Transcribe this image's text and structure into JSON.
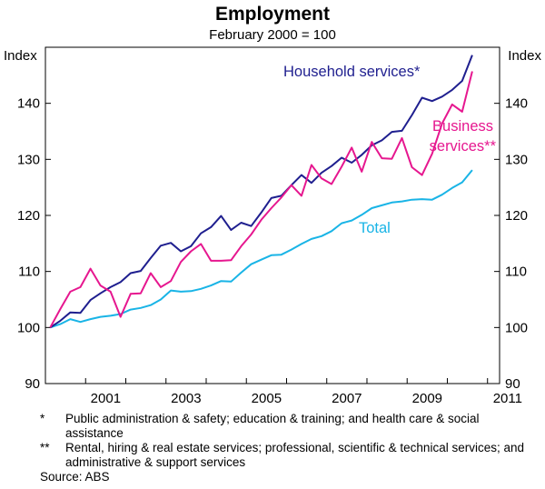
{
  "chart_data": {
    "type": "line",
    "title": "Employment",
    "subtitle": "February 2000 = 100",
    "ylabel_left": "Index",
    "ylabel_right": "Index",
    "ylim": [
      90,
      150
    ],
    "yticks": [
      90,
      100,
      110,
      120,
      130,
      140
    ],
    "xlim": [
      2000,
      2011.3
    ],
    "xticks": [
      2001,
      2003,
      2005,
      2007,
      2009,
      2011
    ],
    "grid": false,
    "series": [
      {
        "name": "Household services*",
        "color": "#1f1f8f",
        "x": [
          2000.12,
          2000.37,
          2000.62,
          2000.87,
          2001.12,
          2001.37,
          2001.62,
          2001.87,
          2002.12,
          2002.37,
          2002.62,
          2002.87,
          2003.12,
          2003.37,
          2003.62,
          2003.87,
          2004.12,
          2004.37,
          2004.62,
          2004.87,
          2005.12,
          2005.37,
          2005.62,
          2005.87,
          2006.12,
          2006.37,
          2006.62,
          2006.87,
          2007.12,
          2007.37,
          2007.62,
          2007.87,
          2008.12,
          2008.37,
          2008.62,
          2008.87,
          2009.12,
          2009.37,
          2009.62,
          2009.87,
          2010.12,
          2010.37,
          2010.62
        ],
        "values": [
          100,
          101.2,
          102.7,
          102.6,
          104.9,
          106.1,
          107.2,
          108.1,
          109.7,
          110.1,
          112.4,
          114.6,
          115.1,
          113.6,
          114.5,
          116.8,
          117.9,
          119.9,
          117.4,
          118.7,
          118.1,
          120.5,
          123.1,
          123.5,
          125.4,
          127.2,
          125.8,
          127.6,
          128.8,
          130.3,
          129.4,
          130.8,
          132.5,
          133.4,
          134.9,
          135.1,
          137.9,
          141.0,
          140.4,
          141.2,
          142.4,
          144.0,
          148.6
        ]
      },
      {
        "name": "Business services**",
        "color": "#e6178f",
        "x": [
          2000.12,
          2000.37,
          2000.62,
          2000.87,
          2001.12,
          2001.37,
          2001.62,
          2001.87,
          2002.12,
          2002.37,
          2002.62,
          2002.87,
          2003.12,
          2003.37,
          2003.62,
          2003.87,
          2004.12,
          2004.37,
          2004.62,
          2004.87,
          2005.12,
          2005.37,
          2005.62,
          2005.87,
          2006.12,
          2006.37,
          2006.62,
          2006.87,
          2007.12,
          2007.37,
          2007.62,
          2007.87,
          2008.12,
          2008.37,
          2008.62,
          2008.87,
          2009.12,
          2009.37,
          2009.62,
          2009.87,
          2010.12,
          2010.37,
          2010.62
        ],
        "values": [
          100,
          103.3,
          106.4,
          107.2,
          110.5,
          107.5,
          106.4,
          101.9,
          106.0,
          106.1,
          109.7,
          107.2,
          108.3,
          111.7,
          113.6,
          114.9,
          111.9,
          111.9,
          112.0,
          114.5,
          116.6,
          119.2,
          121.3,
          123.2,
          125.4,
          123.5,
          129.0,
          126.6,
          125.6,
          128.7,
          132.1,
          127.8,
          133.1,
          130.2,
          130.1,
          133.8,
          128.6,
          127.2,
          131.0,
          136.4,
          139.8,
          138.5,
          145.7
        ]
      },
      {
        "name": "Total",
        "color": "#19b4e6",
        "x": [
          2000.12,
          2000.37,
          2000.62,
          2000.87,
          2001.12,
          2001.37,
          2001.62,
          2001.87,
          2002.12,
          2002.37,
          2002.62,
          2002.87,
          2003.12,
          2003.37,
          2003.62,
          2003.87,
          2004.12,
          2004.37,
          2004.62,
          2004.87,
          2005.12,
          2005.37,
          2005.62,
          2005.87,
          2006.12,
          2006.37,
          2006.62,
          2006.87,
          2007.12,
          2007.37,
          2007.62,
          2007.87,
          2008.12,
          2008.37,
          2008.62,
          2008.87,
          2009.12,
          2009.37,
          2009.62,
          2009.87,
          2010.12,
          2010.37,
          2010.62
        ],
        "values": [
          100,
          100.6,
          101.5,
          101.0,
          101.5,
          101.9,
          102.1,
          102.4,
          103.2,
          103.5,
          104.0,
          105.0,
          106.6,
          106.4,
          106.5,
          106.9,
          107.5,
          108.3,
          108.2,
          109.8,
          111.3,
          112.1,
          112.9,
          113.0,
          113.9,
          114.9,
          115.8,
          116.3,
          117.2,
          118.6,
          119.1,
          120.1,
          121.3,
          121.8,
          122.3,
          122.5,
          122.8,
          122.9,
          122.8,
          123.7,
          124.9,
          125.9,
          128.1
        ]
      }
    ],
    "annotations": [
      {
        "text": "Household services*",
        "series": 0
      },
      {
        "text": "Business",
        "series": 1
      },
      {
        "text": "services**",
        "series": 1
      },
      {
        "text": "Total",
        "series": 2
      }
    ]
  },
  "footnotes": [
    {
      "mark": "*",
      "text": "Public administration & safety; education & training; and health care & social assistance"
    },
    {
      "mark": "**",
      "text": "Rental, hiring & real estate services; professional, scientific & technical services; and administrative & support services"
    }
  ],
  "source": "Source: ABS"
}
